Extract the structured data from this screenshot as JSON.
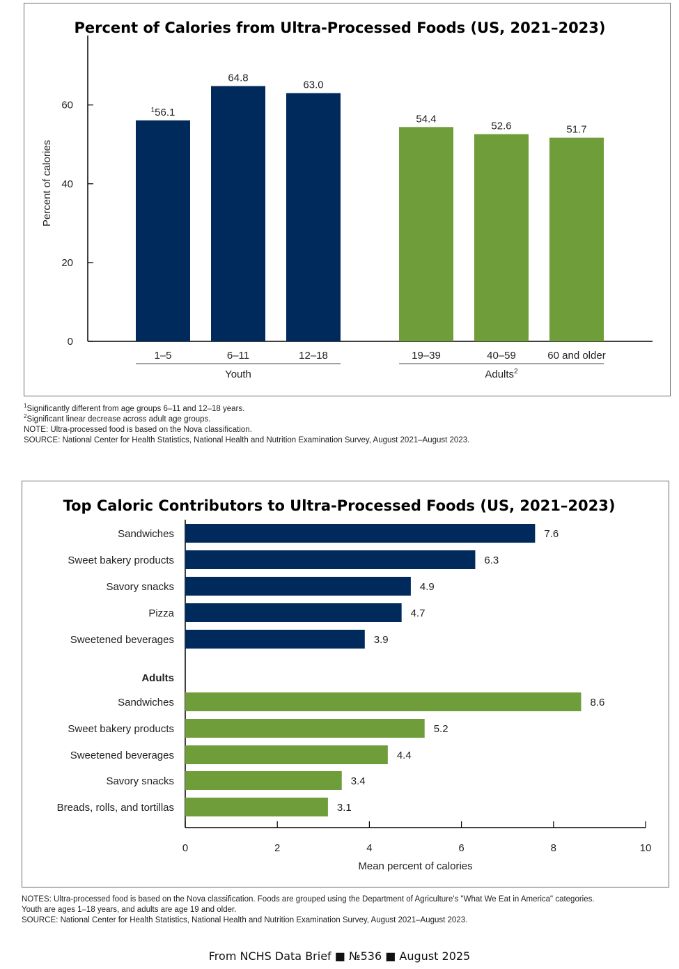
{
  "colors": {
    "youth": "#002a5c",
    "adults": "#6e9d3a",
    "axis": "#000000"
  },
  "chart_data": [
    {
      "type": "bar",
      "title": "Percent of Calories from Ultra-Processed Foods (US, 2021–2023)",
      "ylabel": "Percent of calories",
      "ylim": [
        0,
        75
      ],
      "yticks": [
        0,
        20,
        40,
        60
      ],
      "categories": [
        "1–5",
        "6–11",
        "12–18",
        "19–39",
        "40–59",
        "60 and older"
      ],
      "groups": [
        {
          "name": "Youth",
          "superscript": "",
          "categories": [
            "1–5",
            "6–11",
            "12–18"
          ],
          "values": [
            56.1,
            64.8,
            63.0
          ],
          "value_labels": [
            "56.1",
            "64.8",
            "63.0"
          ],
          "label_superscripts": [
            "1",
            "",
            ""
          ]
        },
        {
          "name": "Adults",
          "superscript": "2",
          "categories": [
            "19–39",
            "40–59",
            "60 and older"
          ],
          "values": [
            54.4,
            52.6,
            51.7
          ],
          "value_labels": [
            "54.4",
            "52.6",
            "51.7"
          ],
          "label_superscripts": [
            "",
            "",
            ""
          ]
        }
      ]
    },
    {
      "type": "bar",
      "orientation": "horizontal",
      "title": "Top Caloric Contributors to Ultra-Processed Foods (US, 2021–2023)",
      "xlabel": "Mean percent of calories",
      "xlim": [
        0,
        10
      ],
      "xticks": [
        0,
        2,
        4,
        6,
        8,
        10
      ],
      "groups": [
        {
          "name": "Youth",
          "heading_visible": false,
          "categories": [
            "Sandwiches",
            "Sweet bakery products",
            "Savory snacks",
            "Pizza",
            "Sweetened beverages"
          ],
          "values": [
            7.6,
            6.3,
            4.9,
            4.7,
            3.9
          ]
        },
        {
          "name": "Adults",
          "heading_visible": true,
          "categories": [
            "Sandwiches",
            "Sweet bakery products",
            "Sweetened beverages",
            "Savory snacks",
            "Breads, rolls, and tortillas"
          ],
          "values": [
            8.6,
            5.2,
            4.4,
            3.4,
            3.1
          ]
        }
      ]
    }
  ],
  "notes1": {
    "n1_sup": "1",
    "n1": "Significantly different from age groups 6–11 and 12–18 years.",
    "n2_sup": "2",
    "n2": "Significant linear decrease across adult age groups.",
    "n3": "NOTE: Ultra-processed food is based on the Nova classification.",
    "n4": "SOURCE: National Center for Health Statistics, National Health and Nutrition Examination Survey, August 2021–August 2023."
  },
  "notes2": {
    "n1": "NOTES: Ultra-processed food is based on the Nova classification. Foods are grouped using the Department of Agriculture's \"What We Eat in America\" categories.",
    "n2": "Youth are ages 1–18 years, and adults are age 19 and older.",
    "n3": "SOURCE: National Center for Health Statistics, National Health and Nutrition Examination Survey, August 2021–August 2023."
  },
  "footer": "From NCHS Data Brief ■ №536 ■ August 2025"
}
